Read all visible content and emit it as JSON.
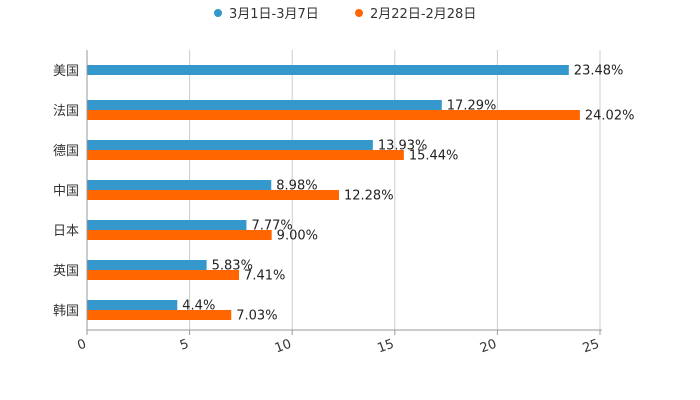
{
  "chart_data": {
    "type": "bar",
    "orientation": "horizontal",
    "title": "",
    "xlabel": "",
    "ylabel": "",
    "categories": [
      "美国",
      "法国",
      "德国",
      "中国",
      "日本",
      "英国",
      "韩国"
    ],
    "series": [
      {
        "name": "3月1日-3月7日",
        "color": "#3498cc",
        "values": [
          23.48,
          17.29,
          13.93,
          8.98,
          7.77,
          5.83,
          4.4
        ],
        "labels": [
          "23.48%",
          "17.29%",
          "13.93%",
          "8.98%",
          "7.77%",
          "5.83%",
          "4.4%"
        ]
      },
      {
        "name": "2月22日-2月28日",
        "color": "#ff6600",
        "values": [
          null,
          24.02,
          15.44,
          12.28,
          9.0,
          7.41,
          7.03
        ],
        "labels": [
          null,
          "24.02%",
          "15.44%",
          "12.28%",
          "9.00%",
          "7.41%",
          "7.03%"
        ]
      }
    ],
    "xlim": [
      0,
      25
    ],
    "xticks": [
      0,
      5,
      10,
      15,
      20,
      25
    ],
    "xtick_labels": [
      "0",
      "5",
      "10",
      "15",
      "20",
      "25"
    ],
    "grid": true,
    "legend_position": "top-center"
  }
}
